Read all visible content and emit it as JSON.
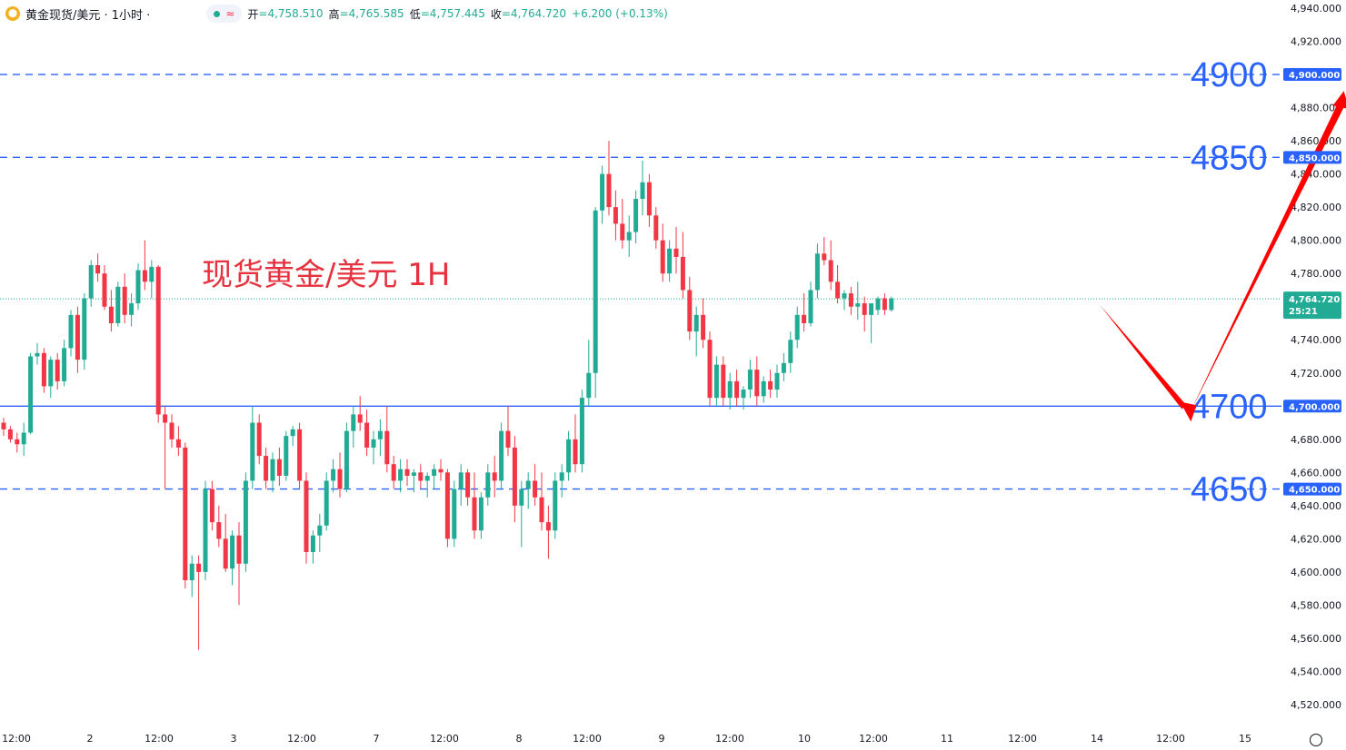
{
  "header": {
    "title": "黄金现货/美元 · 1小时 ·",
    "status_icon_name": "market-status-dot-icon",
    "wave_icon": "≈",
    "ohlc": [
      {
        "label": "开",
        "value": "=4,758.510"
      },
      {
        "label": "高",
        "value": "=4,765.585"
      },
      {
        "label": "低",
        "value": "=4,757.445"
      },
      {
        "label": "收",
        "value": "=4,764.720"
      },
      {
        "label": "",
        "value": "+6.200 (+0.13%)"
      }
    ]
  },
  "annotation": "现货黄金/美元 1H",
  "chart_data": {
    "type": "candlestick",
    "colors": {
      "up": "#22ab94",
      "down": "#f23645",
      "level": "#2962ff",
      "arrow": "#ff0000",
      "last_price": "#22ab94"
    },
    "y_ticks": [
      4940,
      4920,
      4900,
      4880,
      4860,
      4840,
      4820,
      4800,
      4780,
      4760,
      4740,
      4720,
      4700,
      4680,
      4660,
      4640,
      4620,
      4600,
      4580,
      4560,
      4540,
      4520
    ],
    "y_tick_labels": [
      "4,940.000",
      "4,920.000",
      "4,900.000",
      "4,880.000",
      "4,860.000",
      "4,840.000",
      "4,820.000",
      "4,800.000",
      "4,780.000",
      "4,760.000",
      "4,740.000",
      "4,720.000",
      "4,700.000",
      "4,680.000",
      "4,660.000",
      "4,640.000",
      "4,620.000",
      "4,600.000",
      "4,580.000",
      "4,560.000",
      "4,540.000",
      "4,520.000"
    ],
    "ylim": [
      4510,
      4945
    ],
    "x_labels": [
      "12:00",
      "2",
      "12:00",
      "3",
      "12:00",
      "7",
      "12:00",
      "8",
      "12:00",
      "9",
      "12:00",
      "10",
      "12:00",
      "11",
      "12:00",
      "14",
      "12:00",
      "15"
    ],
    "levels": [
      {
        "price": 4900,
        "label": "4900",
        "badge": "4,900.000",
        "style": "dashed"
      },
      {
        "price": 4850,
        "label": "4850",
        "badge": "4,850.000",
        "style": "dashed"
      },
      {
        "price": 4700,
        "label": "4700",
        "badge": "4,700.000",
        "style": "solid"
      },
      {
        "price": 4650,
        "label": "4650",
        "badge": "4,650.000",
        "style": "dashed"
      }
    ],
    "last_price": {
      "value": 4764.72,
      "label": "4,764.720",
      "countdown": "25:21"
    },
    "projection": [
      {
        "bar": 163,
        "price": 4761
      },
      {
        "bar": 176,
        "price": 4695
      },
      {
        "bar": 199,
        "price": 4890
      }
    ],
    "candles": [
      [
        4690,
        4693,
        4682,
        4686
      ],
      [
        4686,
        4688,
        4678,
        4680
      ],
      [
        4680,
        4684,
        4672,
        4677
      ],
      [
        4677,
        4690,
        4670,
        4684
      ],
      [
        4684,
        4732,
        4683,
        4730
      ],
      [
        4730,
        4738,
        4725,
        4732
      ],
      [
        4732,
        4735,
        4708,
        4712
      ],
      [
        4712,
        4730,
        4705,
        4728
      ],
      [
        4728,
        4732,
        4710,
        4715
      ],
      [
        4715,
        4740,
        4712,
        4735
      ],
      [
        4735,
        4758,
        4730,
        4755
      ],
      [
        4755,
        4760,
        4720,
        4728
      ],
      [
        4728,
        4768,
        4722,
        4765
      ],
      [
        4765,
        4788,
        4760,
        4785
      ],
      [
        4785,
        4792,
        4775,
        4780
      ],
      [
        4780,
        4785,
        4758,
        4760
      ],
      [
        4760,
        4770,
        4745,
        4750
      ],
      [
        4750,
        4775,
        4748,
        4772
      ],
      [
        4772,
        4780,
        4750,
        4755
      ],
      [
        4755,
        4768,
        4748,
        4762
      ],
      [
        4762,
        4786,
        4758,
        4782
      ],
      [
        4782,
        4800,
        4770,
        4775
      ],
      [
        4775,
        4788,
        4765,
        4784
      ],
      [
        4784,
        4785,
        4690,
        4695
      ],
      [
        4695,
        4700,
        4650,
        4690
      ],
      [
        4690,
        4695,
        4675,
        4680
      ],
      [
        4680,
        4688,
        4670,
        4675
      ],
      [
        4675,
        4678,
        4590,
        4595
      ],
      [
        4595,
        4610,
        4585,
        4605
      ],
      [
        4605,
        4610,
        4553,
        4600
      ],
      [
        4600,
        4655,
        4595,
        4650
      ],
      [
        4650,
        4655,
        4625,
        4630
      ],
      [
        4630,
        4640,
        4615,
        4620
      ],
      [
        4620,
        4635,
        4600,
        4602
      ],
      [
        4602,
        4625,
        4592,
        4622
      ],
      [
        4622,
        4630,
        4580,
        4605
      ],
      [
        4605,
        4660,
        4600,
        4655
      ],
      [
        4655,
        4700,
        4650,
        4690
      ],
      [
        4690,
        4695,
        4665,
        4670
      ],
      [
        4670,
        4675,
        4650,
        4655
      ],
      [
        4655,
        4672,
        4648,
        4668
      ],
      [
        4668,
        4675,
        4652,
        4658
      ],
      [
        4658,
        4685,
        4655,
        4682
      ],
      [
        4682,
        4688,
        4676,
        4686
      ],
      [
        4686,
        4690,
        4650,
        4655
      ],
      [
        4655,
        4660,
        4605,
        4612
      ],
      [
        4612,
        4625,
        4605,
        4622
      ],
      [
        4622,
        4635,
        4612,
        4628
      ],
      [
        4628,
        4660,
        4625,
        4655
      ],
      [
        4655,
        4668,
        4648,
        4662
      ],
      [
        4662,
        4672,
        4645,
        4650
      ],
      [
        4650,
        4690,
        4648,
        4685
      ],
      [
        4685,
        4700,
        4675,
        4695
      ],
      [
        4695,
        4706,
        4685,
        4690
      ],
      [
        4690,
        4698,
        4670,
        4675
      ],
      [
        4675,
        4685,
        4665,
        4680
      ],
      [
        4680,
        4692,
        4670,
        4685
      ],
      [
        4685,
        4700,
        4660,
        4665
      ],
      [
        4665,
        4670,
        4650,
        4655
      ],
      [
        4655,
        4668,
        4648,
        4662
      ],
      [
        4662,
        4668,
        4652,
        4658
      ],
      [
        4658,
        4662,
        4648,
        4660
      ],
      [
        4660,
        4665,
        4650,
        4655
      ],
      [
        4655,
        4660,
        4645,
        4658
      ],
      [
        4658,
        4665,
        4650,
        4662
      ],
      [
        4662,
        4668,
        4655,
        4660
      ],
      [
        4660,
        4662,
        4615,
        4620
      ],
      [
        4620,
        4655,
        4615,
        4650
      ],
      [
        4650,
        4665,
        4640,
        4660
      ],
      [
        4660,
        4662,
        4640,
        4645
      ],
      [
        4645,
        4660,
        4620,
        4625
      ],
      [
        4625,
        4648,
        4620,
        4645
      ],
      [
        4645,
        4665,
        4640,
        4660
      ],
      [
        4660,
        4670,
        4645,
        4655
      ],
      [
        4655,
        4690,
        4650,
        4685
      ],
      [
        4685,
        4700,
        4670,
        4675
      ],
      [
        4675,
        4682,
        4630,
        4640
      ],
      [
        4640,
        4655,
        4615,
        4650
      ],
      [
        4650,
        4660,
        4638,
        4655
      ],
      [
        4655,
        4665,
        4640,
        4645
      ],
      [
        4645,
        4660,
        4625,
        4630
      ],
      [
        4630,
        4640,
        4608,
        4625
      ],
      [
        4625,
        4660,
        4620,
        4655
      ],
      [
        4655,
        4665,
        4645,
        4660
      ],
      [
        4660,
        4685,
        4655,
        4680
      ],
      [
        4680,
        4695,
        4660,
        4665
      ],
      [
        4665,
        4710,
        4660,
        4705
      ],
      [
        4705,
        4740,
        4700,
        4720
      ],
      [
        4720,
        4820,
        4705,
        4818
      ],
      [
        4818,
        4845,
        4810,
        4840
      ],
      [
        4840,
        4860,
        4815,
        4820
      ],
      [
        4820,
        4830,
        4800,
        4810
      ],
      [
        4810,
        4825,
        4795,
        4800
      ],
      [
        4800,
        4815,
        4790,
        4805
      ],
      [
        4805,
        4830,
        4798,
        4825
      ],
      [
        4825,
        4848,
        4815,
        4835
      ],
      [
        4835,
        4840,
        4808,
        4815
      ],
      [
        4815,
        4820,
        4795,
        4800
      ],
      [
        4800,
        4810,
        4775,
        4780
      ],
      [
        4780,
        4800,
        4775,
        4795
      ],
      [
        4795,
        4808,
        4780,
        4790
      ],
      [
        4790,
        4805,
        4765,
        4770
      ],
      [
        4770,
        4778,
        4740,
        4745
      ],
      [
        4745,
        4760,
        4730,
        4755
      ],
      [
        4755,
        4765,
        4735,
        4740
      ],
      [
        4740,
        4745,
        4700,
        4705
      ],
      [
        4705,
        4730,
        4700,
        4725
      ],
      [
        4725,
        4730,
        4700,
        4705
      ],
      [
        4705,
        4720,
        4698,
        4715
      ],
      [
        4715,
        4722,
        4700,
        4705
      ],
      [
        4705,
        4712,
        4698,
        4710
      ],
      [
        4710,
        4728,
        4705,
        4722
      ],
      [
        4722,
        4730,
        4700,
        4706
      ],
      [
        4706,
        4718,
        4702,
        4715
      ],
      [
        4715,
        4722,
        4705,
        4710
      ],
      [
        4710,
        4725,
        4705,
        4720
      ],
      [
        4720,
        4732,
        4715,
        4726
      ],
      [
        4726,
        4745,
        4720,
        4740
      ],
      [
        4740,
        4760,
        4735,
        4755
      ],
      [
        4755,
        4768,
        4745,
        4750
      ],
      [
        4750,
        4775,
        4748,
        4770
      ],
      [
        4770,
        4798,
        4765,
        4792
      ],
      [
        4792,
        4802,
        4785,
        4788
      ],
      [
        4788,
        4800,
        4770,
        4775
      ],
      [
        4775,
        4785,
        4762,
        4765
      ],
      [
        4765,
        4770,
        4758,
        4768
      ],
      [
        4768,
        4772,
        4755,
        4760
      ],
      [
        4760,
        4775,
        4752,
        4762
      ],
      [
        4762,
        4766,
        4745,
        4755
      ],
      [
        4755,
        4760,
        4738,
        4762
      ],
      [
        4758,
        4766,
        4755,
        4765
      ],
      [
        4765,
        4768,
        4755,
        4758
      ],
      [
        4758,
        4766,
        4757,
        4765
      ]
    ]
  }
}
